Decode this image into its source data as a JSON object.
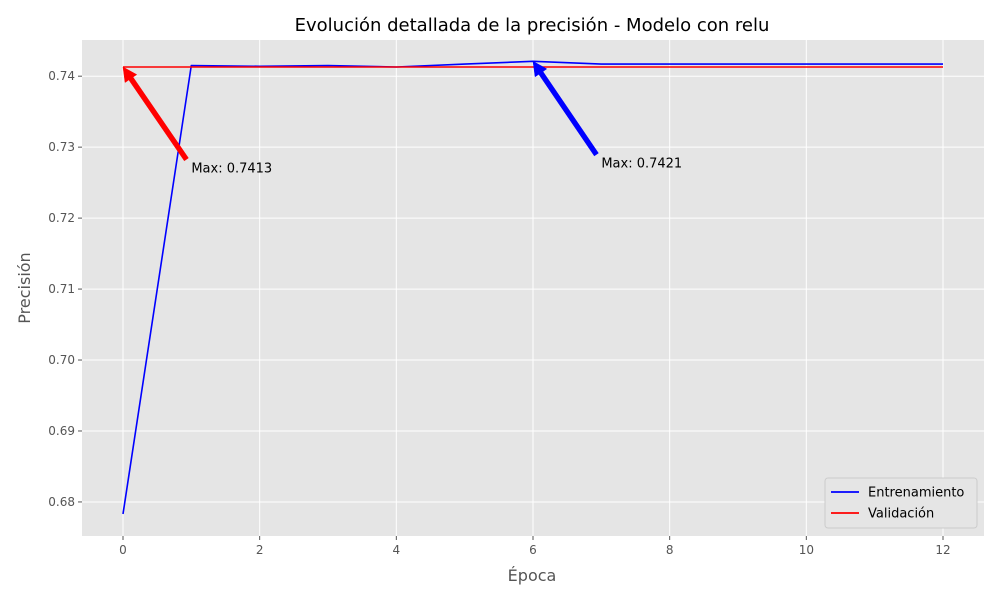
{
  "chart_data": {
    "type": "line",
    "title": "Evolución detallada de la precisión - Modelo con relu",
    "xlabel": "Época",
    "ylabel": "Precisión",
    "xlim": [
      -0.6,
      12.6
    ],
    "ylim": [
      0.6752,
      0.7451
    ],
    "xticks": [
      0,
      2,
      4,
      6,
      8,
      10,
      12
    ],
    "yticks": [
      0.68,
      0.69,
      0.7,
      0.71,
      0.72,
      0.73,
      0.74
    ],
    "ytick_labels": [
      "0.68",
      "0.69",
      "0.70",
      "0.71",
      "0.72",
      "0.73",
      "0.74"
    ],
    "grid": true,
    "legend_position": "lower-right",
    "x": [
      0,
      1,
      2,
      3,
      4,
      5,
      6,
      7,
      8,
      9,
      10,
      11,
      12
    ],
    "series": [
      {
        "name": "Entrenamiento",
        "color": "#0000ff",
        "values": [
          0.6783,
          0.7415,
          0.7414,
          0.7415,
          0.7413,
          0.7417,
          0.7421,
          0.7417,
          0.7417,
          0.7417,
          0.7417,
          0.7417,
          0.7417
        ]
      },
      {
        "name": "Validación",
        "color": "#ff0000",
        "values": [
          0.7413,
          0.7413,
          0.7413,
          0.7413,
          0.7413,
          0.7413,
          0.7413,
          0.7413,
          0.7413,
          0.7413,
          0.7413,
          0.7413,
          0.7413
        ]
      }
    ],
    "annotations": [
      {
        "text": "Max: 0.7413",
        "color": "#ff0000",
        "point": [
          0,
          0.7413
        ],
        "text_at": [
          1,
          0.727
        ]
      },
      {
        "text": "Max: 0.7421",
        "color": "#0000ff",
        "point": [
          6,
          0.7421
        ],
        "text_at": [
          7,
          0.7277
        ]
      }
    ]
  }
}
